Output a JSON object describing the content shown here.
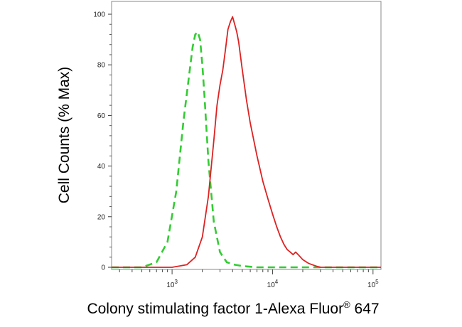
{
  "chart_data": {
    "type": "line",
    "title": "",
    "xlabel": "Colony stimulating factor 1-Alexa Fluor",
    "xlabel_superscript": "®",
    "xlabel_suffix": " 647",
    "ylabel": "Cell Counts (% Max)",
    "x_scale": "log",
    "xlim": [
      250,
      120000
    ],
    "ylim": [
      0,
      100
    ],
    "yticks": [
      0,
      20,
      40,
      60,
      80,
      100
    ],
    "xticks": [
      {
        "value": 1000,
        "base": "10",
        "exp": "3"
      },
      {
        "value": 10000,
        "base": "10",
        "exp": "4"
      },
      {
        "value": 100000,
        "base": "10",
        "exp": "5"
      }
    ],
    "grid": false,
    "legend": "none",
    "series": [
      {
        "color": "#33cc33",
        "style": "dashed",
        "x": [
          250,
          500,
          700,
          900,
          1100,
          1300,
          1500,
          1600,
          1700,
          1800,
          1900,
          2000,
          2100,
          2300,
          2600,
          3000,
          3500,
          4200,
          5000,
          7000,
          120000
        ],
        "y": [
          0,
          0,
          2,
          10,
          30,
          58,
          78,
          87,
          92,
          93,
          90,
          80,
          68,
          42,
          18,
          6,
          2,
          1,
          0.5,
          0,
          0
        ]
      },
      {
        "color": "#dd2222",
        "style": "solid",
        "x": [
          250,
          1000,
          1400,
          1700,
          2000,
          2300,
          2600,
          2800,
          3000,
          3200,
          3400,
          3600,
          3800,
          4000,
          4200,
          4400,
          4600,
          5000,
          5500,
          6000,
          7000,
          8000,
          9000,
          10000,
          11000,
          12000,
          13000,
          14000,
          15000,
          16000,
          17000,
          18000,
          20000,
          23000,
          27000,
          30000,
          40000,
          120000
        ],
        "y": [
          0,
          0,
          1,
          4,
          12,
          28,
          50,
          64,
          72,
          78,
          86,
          94,
          97,
          99,
          96,
          93,
          89,
          78,
          66,
          57,
          44,
          34,
          27,
          21,
          16,
          12,
          9,
          7,
          6,
          5,
          6,
          5,
          3,
          1.5,
          0.5,
          0,
          0,
          0
        ]
      }
    ]
  }
}
